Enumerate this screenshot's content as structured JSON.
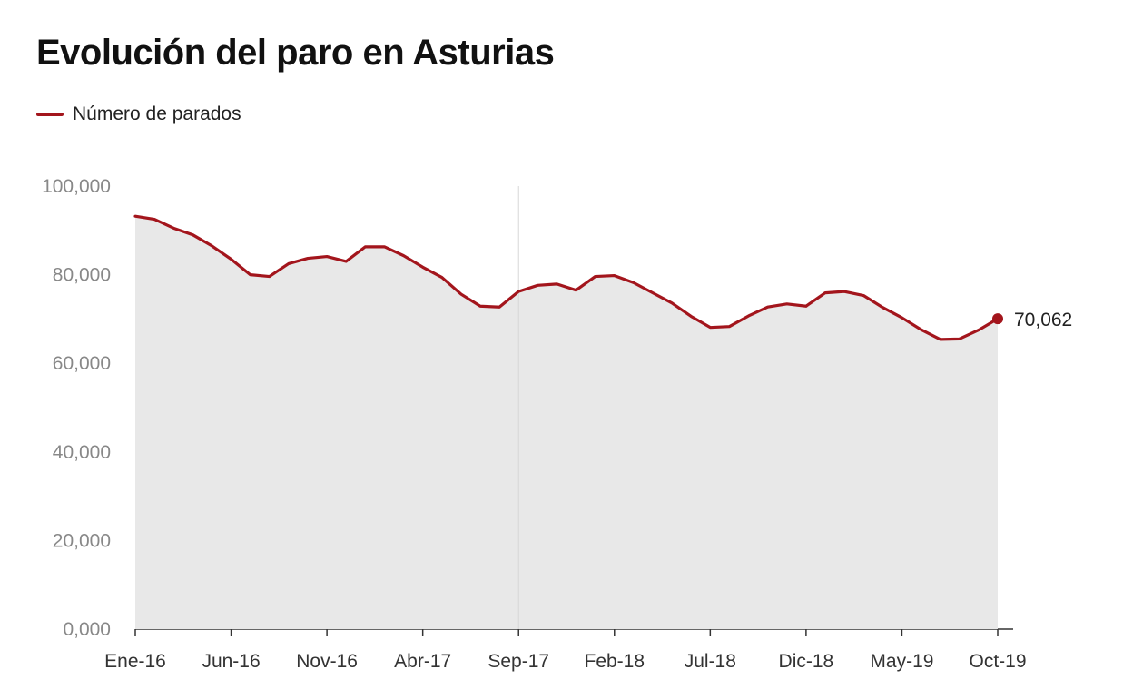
{
  "chart_data": {
    "type": "area",
    "title": "Evolución del paro en Asturias",
    "series": [
      {
        "name": "Número de parados",
        "values": [
          93200,
          92500,
          90500,
          89000,
          86500,
          83500,
          80000,
          79600,
          82500,
          83700,
          84100,
          83000,
          86300,
          86300,
          84300,
          81700,
          79400,
          75600,
          72900,
          72700,
          76200,
          77600,
          77900,
          76500,
          79600,
          79800,
          78200,
          75900,
          73600,
          70600,
          68100,
          68300,
          70700,
          72700,
          73400,
          72900,
          75900,
          76200,
          75300,
          72600,
          70300,
          67600,
          65400,
          65500,
          67500,
          70062
        ]
      }
    ],
    "x_tick_labels": [
      "Ene-16",
      "Jun-16",
      "Nov-16",
      "Abr-17",
      "Sep-17",
      "Feb-18",
      "Jul-18",
      "Dic-18",
      "May-19",
      "Oct-19"
    ],
    "y_tick_labels": [
      "0,000",
      "20,000",
      "40,000",
      "60,000",
      "80,000",
      "100,000"
    ],
    "ylim": [
      0,
      100000
    ],
    "last_value_label": "70,062",
    "legend": "top-left",
    "grid": false,
    "colors": {
      "line": "#a3151c",
      "area": "#e8e8e8",
      "axis": "#333333"
    }
  }
}
